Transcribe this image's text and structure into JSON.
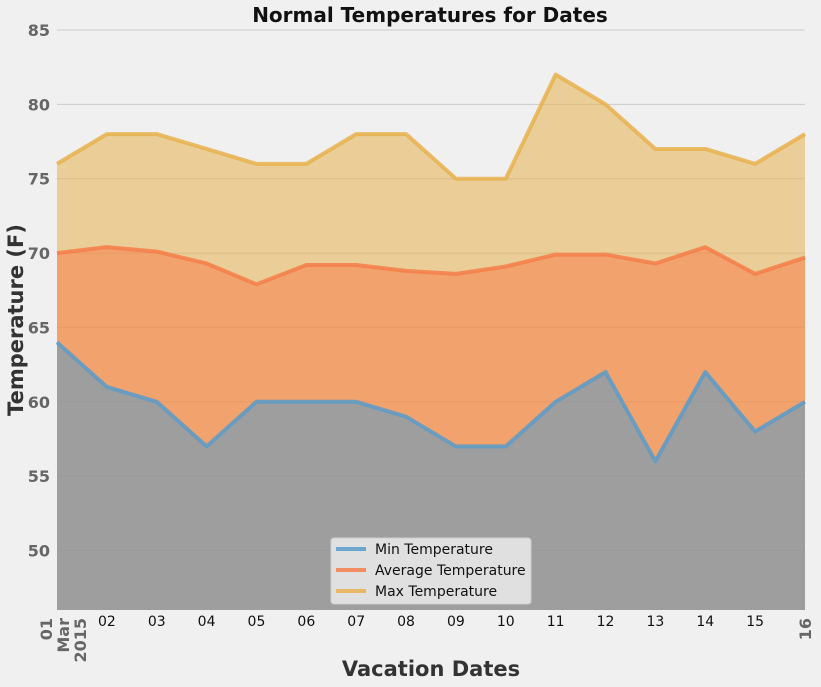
{
  "chart_data": {
    "type": "area",
    "title": "Normal Temperatures for Dates",
    "xlabel": "Vacation Dates",
    "ylabel": "Temperature (F)",
    "ylim": [
      46,
      85
    ],
    "yticks": [
      50,
      55,
      60,
      65,
      70,
      75,
      80,
      85
    ],
    "grid": true,
    "legend_position": "lower center",
    "categories": [
      "01\nMar\n2015",
      "02",
      "03",
      "04",
      "05",
      "06",
      "07",
      "08",
      "09",
      "10",
      "11",
      "12",
      "13",
      "14",
      "15",
      "16"
    ],
    "first_tick_lines": [
      "01",
      "Mar",
      "2015"
    ],
    "series": [
      {
        "name": "Min Temperature",
        "color": "#5a9bc9",
        "values": [
          64,
          61,
          60,
          57,
          60,
          60,
          60,
          59,
          57,
          57,
          60,
          62,
          56,
          62,
          58,
          60
        ]
      },
      {
        "name": "Average Temperature",
        "color": "#f57e4a",
        "values": [
          70.0,
          70.4,
          70.1,
          69.3,
          67.9,
          69.2,
          69.2,
          68.8,
          68.6,
          69.1,
          69.9,
          69.9,
          69.3,
          70.4,
          68.6,
          69.7
        ]
      },
      {
        "name": "Max Temperature",
        "color": "#e8b24e",
        "values": [
          76,
          78,
          78,
          77,
          76,
          76,
          78,
          78,
          75,
          75,
          82,
          80,
          77,
          77,
          76,
          78
        ]
      }
    ]
  }
}
